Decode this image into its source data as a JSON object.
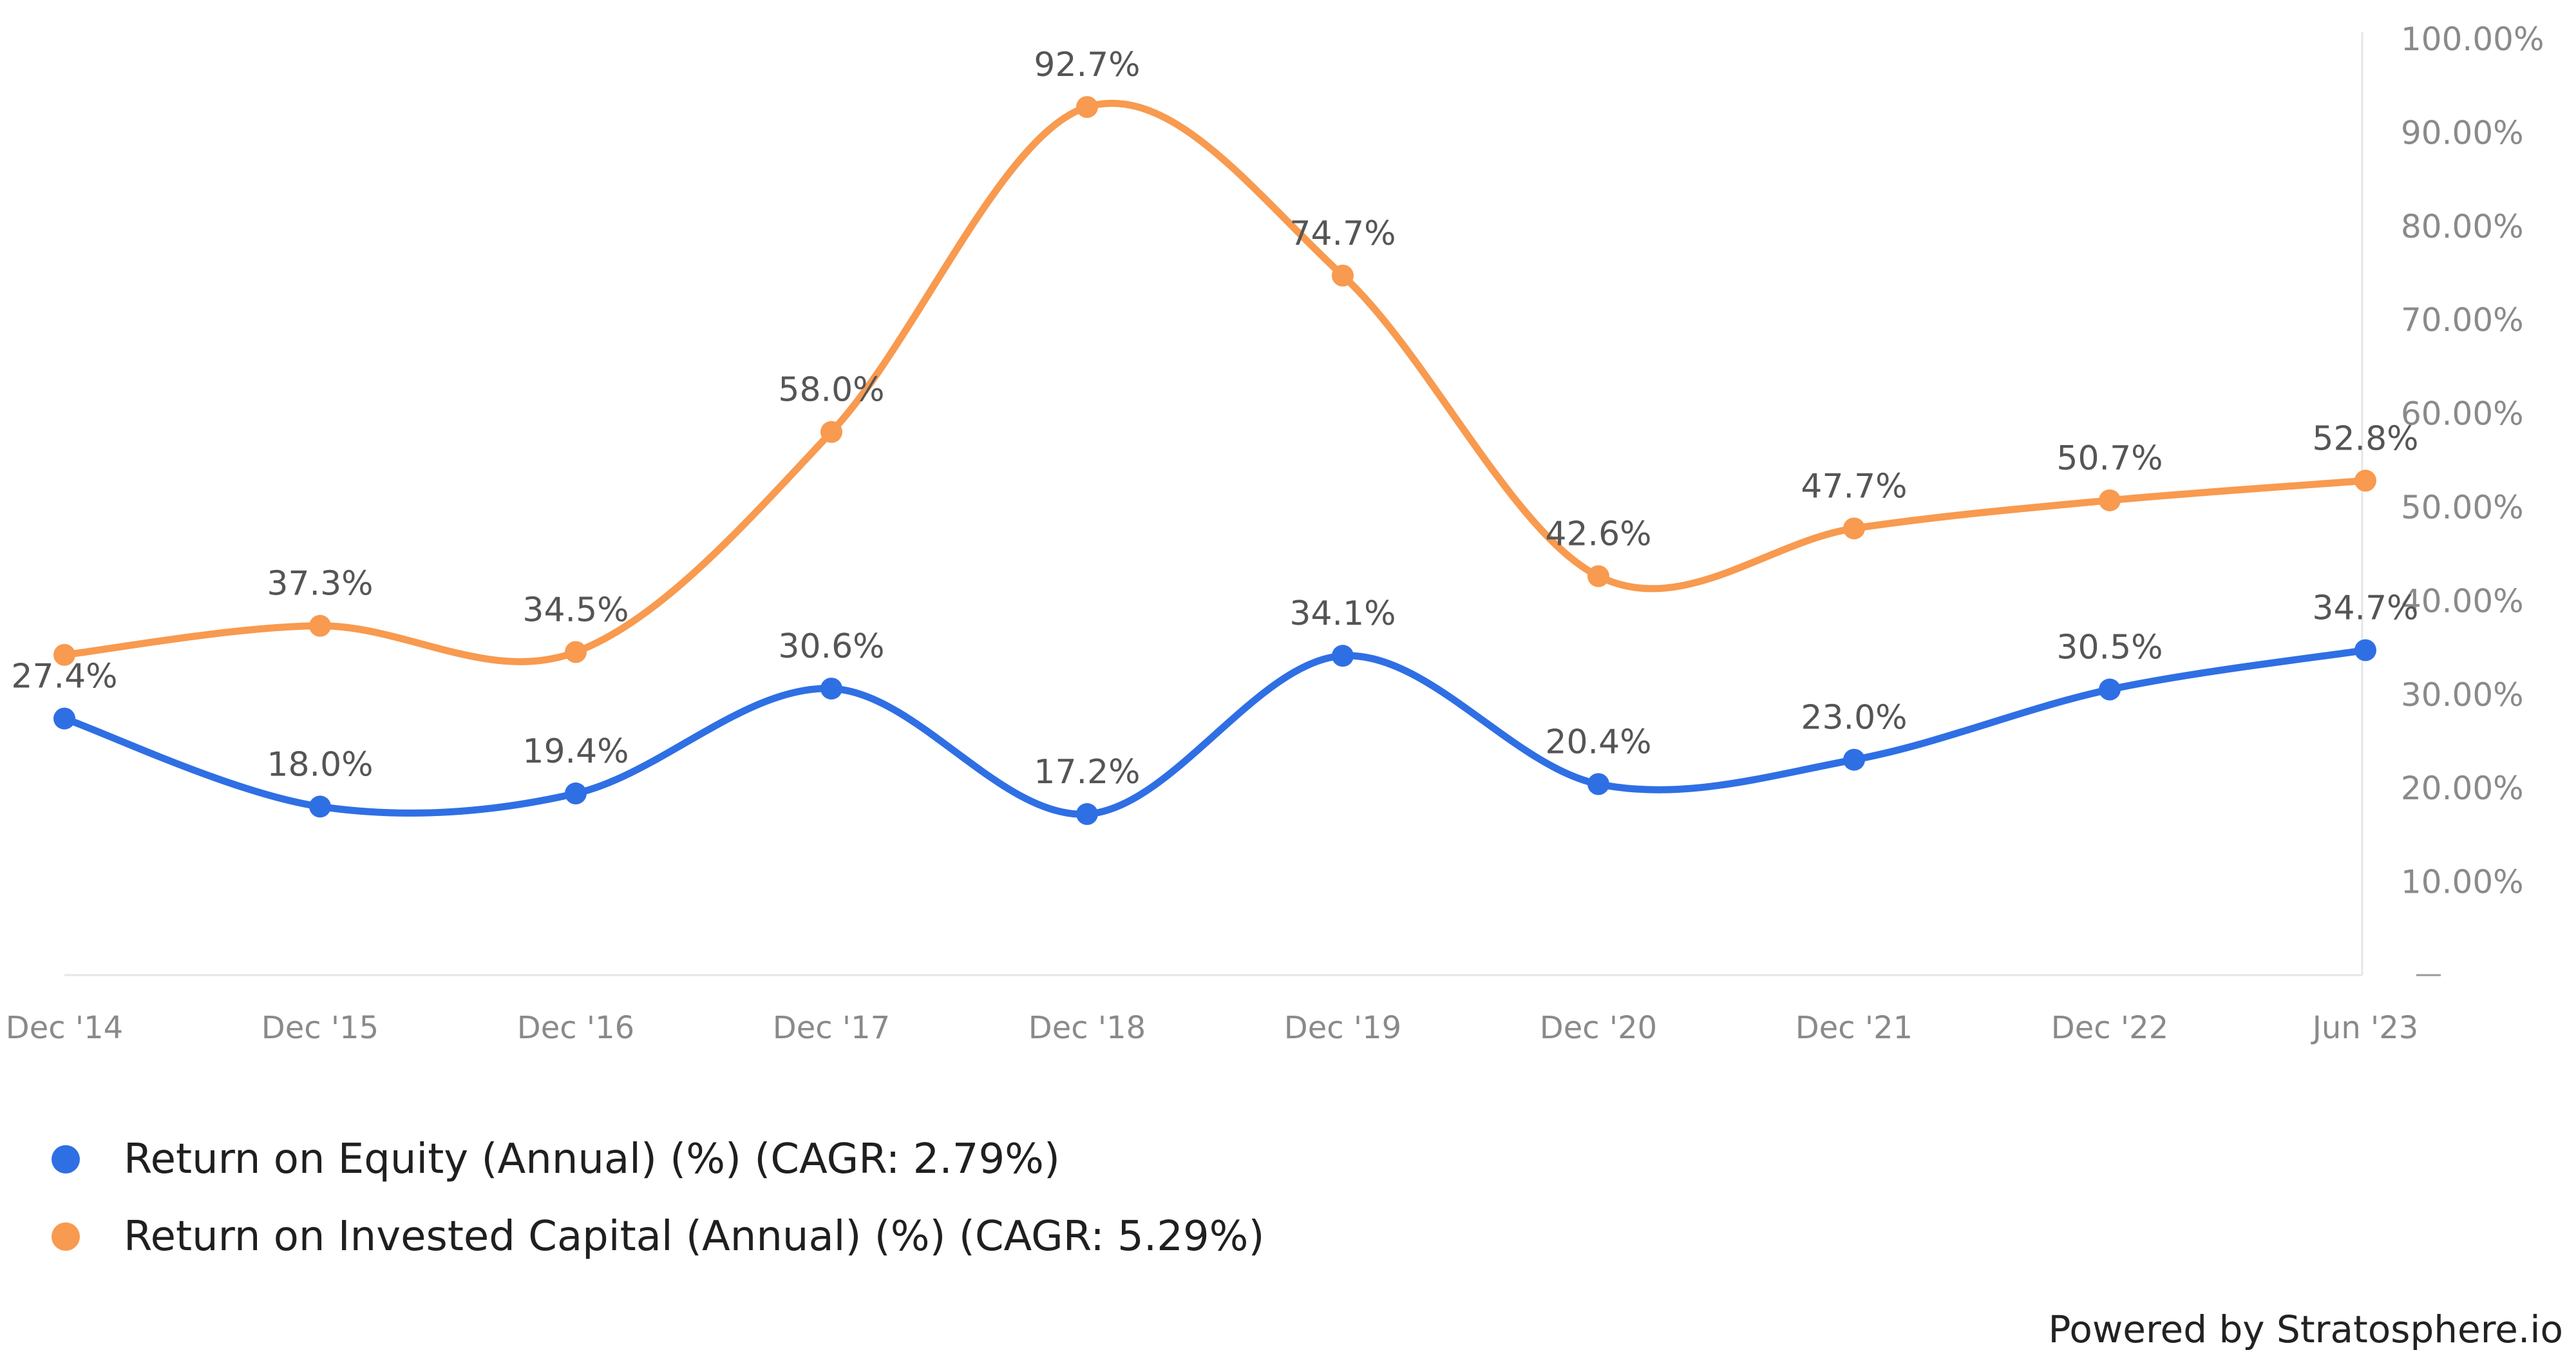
{
  "chart_data": {
    "type": "line",
    "title": "",
    "xlabel": "",
    "ylabel": "",
    "categories": [
      "Dec '14",
      "Dec '15",
      "Dec '16",
      "Dec '17",
      "Dec '18",
      "Dec '19",
      "Dec '20",
      "Dec '21",
      "Dec '22",
      "Jun '23"
    ],
    "ylim": [
      0,
      100
    ],
    "y_ticks": [
      {
        "value": 0,
        "label": "—"
      },
      {
        "value": 10,
        "label": "10.00%"
      },
      {
        "value": 20,
        "label": "20.00%"
      },
      {
        "value": 30,
        "label": "30.00%"
      },
      {
        "value": 40,
        "label": "40.00%"
      },
      {
        "value": 50,
        "label": "50.00%"
      },
      {
        "value": 60,
        "label": "60.00%"
      },
      {
        "value": 70,
        "label": "70.00%"
      },
      {
        "value": 80,
        "label": "80.00%"
      },
      {
        "value": 90,
        "label": "90.00%"
      },
      {
        "value": 100,
        "label": "100.00%"
      }
    ],
    "y_axis_position": "right",
    "grid": false,
    "smooth": true,
    "legend_position": "bottom-left",
    "series": [
      {
        "name": "Return on Equity (Annual) (%) (CAGR: 2.79%)",
        "color": "#2f6fe4",
        "values": [
          27.4,
          18.0,
          19.4,
          30.6,
          17.2,
          34.1,
          20.4,
          23.0,
          30.5,
          34.7
        ],
        "labels": [
          "27.4%",
          "18.0%",
          "19.4%",
          "30.6%",
          "17.2%",
          "34.1%",
          "20.4%",
          "23.0%",
          "30.5%",
          "34.7%"
        ]
      },
      {
        "name": "Return on Invested Capital (Annual) (%) (CAGR: 5.29%)",
        "color": "#f89a4f",
        "values": [
          34.2,
          37.3,
          34.5,
          58.0,
          92.7,
          74.7,
          42.6,
          47.7,
          50.7,
          52.8
        ],
        "labels": [
          "",
          "37.3%",
          "34.5%",
          "58.0%",
          "92.7%",
          "74.7%",
          "42.6%",
          "47.7%",
          "50.7%",
          "52.8%"
        ]
      }
    ]
  },
  "footer": {
    "powered_by": "Powered by Stratosphere.io"
  }
}
